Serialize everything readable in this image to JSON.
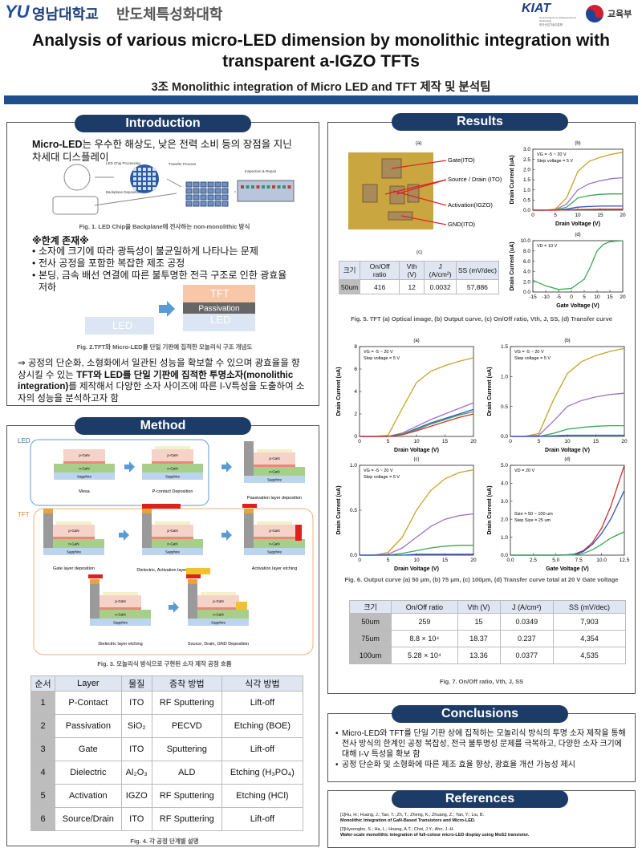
{
  "header": {
    "logo_mark": "YU",
    "university": "영남대학교",
    "department": "반도체특성화대학",
    "logo_kiat": "KIAT",
    "logo_kiat_sub": "Korea Institute for Advancement of Technology",
    "logo_kiat_korean": "한국산업기술진흥원",
    "logo_ministry": "교육부",
    "title": "Analysis of various micro-LED dimension by monolithic integration with transparent a-IGZO TFTs",
    "subtitle": "3조 Monolithic integration of Micro LED and TFT 제작 및 분석팀"
  },
  "introduction": {
    "heading": "Introduction",
    "lead": [
      {
        "text": "Micro-LED",
        "bold": true
      },
      {
        "text": "는 우수한 해상도, 낮은 전력 소비 등의 장점을 지닌 차세대 디스플레이",
        "bold": false
      }
    ],
    "figure1": {
      "labels": [
        "LED Chip Processing",
        "Backplane Deposition",
        "Transfer Process",
        "Inspection & Repair"
      ],
      "caption": "Fig. 1. LED Chip을 Backplane에 전사하는 non-monolithic 방식"
    },
    "limitations_heading": "※한계 존재※",
    "limitations": [
      "소자에 크기에 따라 광특성이 불균일하게 나타나는 문제",
      "전사 공정을 포함한 복잡한 제조 공정",
      "본딩, 금속 배선 연결에 따른 불투명한 전극 구조로 인한 광효율 저하"
    ],
    "figure2": {
      "tft": "TFT",
      "passivation": "Passivation",
      "led": "LED",
      "caption": "Fig. 2.TFT와 Micro-LED를 단일 기판에 집적한 모놀리식 구조 개념도"
    },
    "summary": [
      {
        "text": "⇒ 공정의 단순화, 소형화에서 일관된 성능을 확보할 수 있으며 광효율을 향상시킬 수 있는 ",
        "bold": false
      },
      {
        "text": "TFT와 LED를 단일 기판에 집적한 투명소자(monolithic integration)",
        "bold": true
      },
      {
        "text": "를 제작해서 다양한 소자 사이즈에 따른 I-V특성을 도출하여 소자의 성능을 분석하고자 함",
        "bold": false
      }
    ]
  },
  "method": {
    "heading": "Method",
    "led_label": "LED",
    "tft_label": "TFT",
    "layers": {
      "p": "p-GaN",
      "n": "n-GaN",
      "sub": "Sapphire"
    },
    "steps": [
      "Mesa",
      "P-contact Deposition",
      "Passivation layer deposition",
      "Gate layer deposition",
      "Dielectric, Activation layer deposition",
      "Activation layer etching",
      "Dielectric layer etching",
      "Source, Drain, GND Deposition"
    ],
    "figure3_caption": "Fig. 3. 모놀리식 방식으로 구현된 소자 제작 공정 흐름",
    "table": {
      "header": [
        "순서",
        "Layer",
        "물질",
        "증착 방법",
        "식각 방법"
      ],
      "rows": [
        [
          "1",
          "P-Contact",
          "ITO",
          "RF Sputtering",
          "Lift-off"
        ],
        [
          "2",
          "Passivation",
          "SiO₂",
          "PECVD",
          "Etching (BOE)"
        ],
        [
          "3",
          "Gate",
          "ITO",
          "Sputtering",
          "Lift-off"
        ],
        [
          "4",
          "Dielectric",
          "Al₂O₃",
          "ALD",
          "Etching (H₃PO₄)"
        ],
        [
          "5",
          "Activation",
          "IGZO",
          "RF Sputtering",
          "Etching (HCl)"
        ],
        [
          "6",
          "Source/Drain",
          "ITO",
          "RF Sputtering",
          "Lift-off"
        ]
      ]
    },
    "figure4_caption": "Fig. 4. 각 공정 단계별 설명"
  },
  "results": {
    "heading": "Results",
    "figure5": {
      "panel_a": "(a)",
      "panel_c": "(c)",
      "image_labels": [
        "Gate(ITO)",
        "Source / Drain (ITO)",
        "Activation(IGZO)",
        "GND(ITO)"
      ],
      "table": {
        "header": [
          "크기",
          "On/Off ratio",
          "Vth (V)",
          "J (A/cm²)",
          "SS (mV/dec)"
        ],
        "rows": [
          [
            "50um",
            "416",
            "12",
            "0.0032",
            "57,886"
          ]
        ]
      },
      "caption": "Fig. 5. TFT (a) Optical image, (b) Output curve, (c) On/Off ratio, Vth, J, SS, (d) Transfer curve"
    },
    "figure6_caption": "Fig. 6. Output curve (a) 50 μm, (b) 75 μm, (c) 100μm, (d) Transfer curve total at 20 V Gate voltage",
    "figure7": {
      "table": {
        "header": [
          "크기",
          "On/Off ratio",
          "Vth (V)",
          "J (A/cm²)",
          "SS (mV/dec)"
        ],
        "rows": [
          [
            "50um",
            "259",
            "15",
            "0.0349",
            "7,903"
          ],
          [
            "75um",
            "8.8 × 10⁴",
            "18.37",
            "0.237",
            "4,354"
          ],
          [
            "100um",
            "5.28 × 10⁴",
            "13.36",
            "0.0377",
            "4,535"
          ]
        ]
      },
      "caption": "Fig. 7. On/Off ratio, Vth, J, SS"
    }
  },
  "chart_data": [
    {
      "type": "line",
      "panel": "(b)",
      "xlabel": "Drain Voltage (V)",
      "ylabel": "Drain Current (uA)",
      "annotations": [
        "VG = -5 ~ 20 V",
        "Step voltage = 5 V"
      ],
      "x": [
        0,
        2.5,
        5,
        7.5,
        10,
        12.5,
        15,
        17.5,
        20
      ],
      "xlim": [
        0,
        20
      ],
      "xticks": [
        0,
        5,
        10,
        15,
        20
      ],
      "ylim": [
        0,
        3.0
      ],
      "yticks": [
        {
          "value": 0,
          "label": "0.0"
        },
        0.5,
        {
          "value": 1,
          "label": "1.0"
        },
        1.5,
        {
          "value": 2,
          "label": "2.0"
        },
        2.5,
        {
          "value": 3,
          "label": "3.0"
        }
      ],
      "series": [
        {
          "color": "#c9a227",
          "values": [
            0,
            0,
            0.05,
            0.6,
            1.9,
            2.4,
            2.6,
            2.75,
            2.85
          ]
        },
        {
          "color": "#a070c8",
          "values": [
            0,
            0,
            0.02,
            0.3,
            1.0,
            1.3,
            1.45,
            1.55,
            1.6
          ]
        },
        {
          "color": "#3aa655",
          "values": [
            0,
            0,
            0.01,
            0.15,
            0.6,
            0.72,
            0.78,
            0.8,
            0.8
          ]
        },
        {
          "color": "#3050c8",
          "values": [
            0,
            0,
            0,
            0.05,
            0.15,
            0.18,
            0.2,
            0.2,
            0.2
          ]
        },
        {
          "color": "#d03030",
          "values": [
            0,
            0,
            0,
            0.01,
            0.03,
            0.04,
            0.05,
            0.05,
            0.05
          ]
        }
      ]
    },
    {
      "type": "line",
      "panel": "(d)",
      "xlabel": "Gate Voltage (V)",
      "ylabel": "Drain Current (uA)",
      "annotations": [
        "VD = 10 V"
      ],
      "x": [
        -15,
        -10,
        -5,
        0,
        5,
        7.5,
        10,
        12.5,
        15,
        20
      ],
      "xlim": [
        -15,
        20
      ],
      "xticks": [
        -15,
        -10,
        -5,
        0,
        5,
        10,
        15,
        20
      ],
      "ylim": [
        0,
        10
      ],
      "yticks": [
        {
          "value": 0,
          "label": "0.0"
        },
        {
          "value": 2,
          "label": "2.0"
        },
        {
          "value": 4,
          "label": "4.0"
        },
        {
          "value": 6,
          "label": "6.0"
        },
        {
          "value": 8,
          "label": "8.0"
        },
        {
          "value": 10,
          "label": "10.0"
        }
      ],
      "series": [
        {
          "color": "#3aa655",
          "values": [
            2.3,
            1.2,
            0.5,
            0.7,
            2.5,
            5,
            8,
            9.3,
            9.8,
            10
          ]
        }
      ]
    },
    {
      "type": "line",
      "panel": "(a)",
      "xlabel": "Drain Voltage (V)",
      "ylabel": "Drain Current (uA)",
      "annotations": [
        "VG = -5 ~ 20 V",
        "Step voltage = 5 V"
      ],
      "x": [
        0,
        2.5,
        5,
        7.5,
        10,
        12.5,
        15,
        17.5,
        20
      ],
      "xlim": [
        0,
        20
      ],
      "xticks": [
        0,
        5,
        10,
        15,
        20
      ],
      "ylim": [
        0,
        8
      ],
      "yticks": [
        0,
        2,
        4,
        6,
        8
      ],
      "series": [
        {
          "color": "#c9a227",
          "values": [
            0,
            0,
            0.1,
            2.5,
            4.8,
            5.8,
            6.3,
            6.7,
            7.0
          ]
        },
        {
          "color": "#a070c8",
          "values": [
            0,
            0,
            0,
            0.3,
            0.9,
            1.5,
            2.0,
            2.5,
            3.0
          ]
        },
        {
          "color": "#3050c8",
          "values": [
            0,
            0,
            0,
            0.2,
            0.7,
            1.2,
            1.6,
            2.0,
            2.4
          ]
        },
        {
          "color": "#3aa655",
          "values": [
            0,
            0,
            0,
            0.2,
            0.6,
            1.1,
            1.5,
            1.9,
            2.2
          ]
        },
        {
          "color": "#d03030",
          "values": [
            0,
            0,
            0,
            0.15,
            0.5,
            0.9,
            1.3,
            1.7,
            2.0
          ]
        }
      ]
    },
    {
      "type": "line",
      "panel": "(b)",
      "xlabel": "Drain Voltage (V)",
      "ylabel": "Drain Current (uA)",
      "annotations": [
        "VG = -5 ~ 20 V",
        "Step voltage = 5 V"
      ],
      "x": [
        0,
        2.5,
        5,
        7.5,
        10,
        12.5,
        15,
        17.5,
        20
      ],
      "xlim": [
        0,
        20
      ],
      "xticks": [
        0,
        5,
        10,
        15,
        20
      ],
      "ylim": [
        0,
        1.5
      ],
      "yticks": [
        {
          "value": 0,
          "label": "0.0"
        },
        0.5,
        {
          "value": 1,
          "label": "1.0"
        },
        1.5
      ],
      "series": [
        {
          "color": "#c9a227",
          "values": [
            0,
            0,
            0.05,
            0.6,
            1.05,
            1.25,
            1.35,
            1.42,
            1.47
          ]
        },
        {
          "color": "#a070c8",
          "values": [
            0,
            0,
            0.02,
            0.25,
            0.5,
            0.6,
            0.66,
            0.7,
            0.72
          ]
        },
        {
          "color": "#3aa655",
          "values": [
            0,
            0,
            0,
            0.05,
            0.12,
            0.15,
            0.17,
            0.18,
            0.18
          ]
        },
        {
          "color": "#3050c8",
          "values": [
            0,
            0,
            0,
            0.01,
            0.02,
            0.02,
            0.02,
            0.02,
            0.02
          ]
        }
      ]
    },
    {
      "type": "line",
      "panel": "(c)",
      "xlabel": "Drain Voltage (V)",
      "ylabel": "Drain Current (uA)",
      "annotations": [
        "VG = -5 ~ 20 V",
        "Step voltage = 5 V"
      ],
      "x": [
        0,
        2.5,
        5,
        7.5,
        10,
        12.5,
        15,
        17.5,
        20
      ],
      "xlim": [
        0,
        20
      ],
      "xticks": [
        0,
        5,
        10,
        15,
        20
      ],
      "ylim": [
        0,
        1.0
      ],
      "yticks": [
        {
          "value": 0,
          "label": "0.0"
        },
        0.5,
        {
          "value": 1,
          "label": "1.0"
        }
      ],
      "series": [
        {
          "color": "#c9a227",
          "values": [
            0,
            0,
            0.03,
            0.2,
            0.5,
            0.72,
            0.85,
            0.92,
            0.95
          ]
        },
        {
          "color": "#a070c8",
          "values": [
            0,
            0,
            0.01,
            0.08,
            0.2,
            0.32,
            0.4,
            0.44,
            0.46
          ]
        },
        {
          "color": "#3aa655",
          "values": [
            0,
            0,
            0,
            0.02,
            0.05,
            0.08,
            0.1,
            0.11,
            0.11
          ]
        },
        {
          "color": "#3050c8",
          "values": [
            0,
            0,
            0,
            0,
            0.01,
            0.01,
            0.01,
            0.01,
            0.01
          ]
        }
      ]
    },
    {
      "type": "line",
      "panel": "(d)",
      "xlabel": "Gate Voltage (V)",
      "ylabel": "Drain Current (uA)",
      "annotations": [
        "VD = 20 V",
        "Size = 50 ~ 100 um",
        "Step Size = 25 um"
      ],
      "x": [
        0,
        2.5,
        5,
        6,
        7,
        8,
        9,
        10,
        11,
        12.5
      ],
      "xlim": [
        0,
        12.5
      ],
      "xticks": [
        {
          "value": 0,
          "label": "0.0"
        },
        2.5,
        {
          "value": 5,
          "label": "5.0"
        },
        7.5,
        {
          "value": 10,
          "label": "10.0"
        },
        12.5
      ],
      "ylim": [
        0,
        5
      ],
      "yticks": [
        {
          "value": 0,
          "label": "0.0"
        },
        {
          "value": 1,
          "label": "1.0"
        },
        {
          "value": 2,
          "label": "2.0"
        },
        {
          "value": 3,
          "label": "3.0"
        },
        {
          "value": 4,
          "label": "4.0"
        },
        {
          "value": 5,
          "label": "5.0"
        }
      ],
      "series": [
        {
          "color": "#d03030",
          "values": [
            0,
            0,
            0,
            0.01,
            0.05,
            0.25,
            0.7,
            1.5,
            2.7,
            5.0
          ]
        },
        {
          "color": "#3050c8",
          "values": [
            0,
            0,
            0,
            0.01,
            0.05,
            0.2,
            0.6,
            1.2,
            2.0,
            3.6
          ]
        },
        {
          "color": "#3aa655",
          "values": [
            0,
            0,
            0,
            0,
            0.02,
            0.1,
            0.3,
            0.6,
            0.95,
            1.3
          ]
        }
      ]
    }
  ],
  "conclusions": {
    "heading": "Conclusions",
    "items": [
      "Micro-LED와 TFT를 단일 기판 상에 집적하는 모놀리식 방식의 투명 소자 제작을 통해 전사 방식의 한계인 공정 복잡성, 전극 불투명성 문제를 극복하고, 다양한 소자 크기에 대해 I-V 특성을 확보 함",
      "공정 단순화 및 소형화에 따른 제조 효율 향상, 광효율 개선 가능성 제시"
    ]
  },
  "references": {
    "heading": "References",
    "items": [
      {
        "authors": "[1]Hu, H.; Huang, J.; Tao, T.; Zh, T.; Zheng, K.; Zhuang, Z.; Yan, Y.; Liu, B.",
        "title": "Monolithic Integration of GaN-Based Transistors and Micro-LED."
      },
      {
        "authors": "[2]Hyeongbo, S.; Ha, L.; Hoang, A.T.; Choi, J.Y.; Ahn, J.-H.",
        "title": "Wafer-scale monolithic integration of full-colour micro-LED display using MoS2 transistor."
      }
    ]
  }
}
